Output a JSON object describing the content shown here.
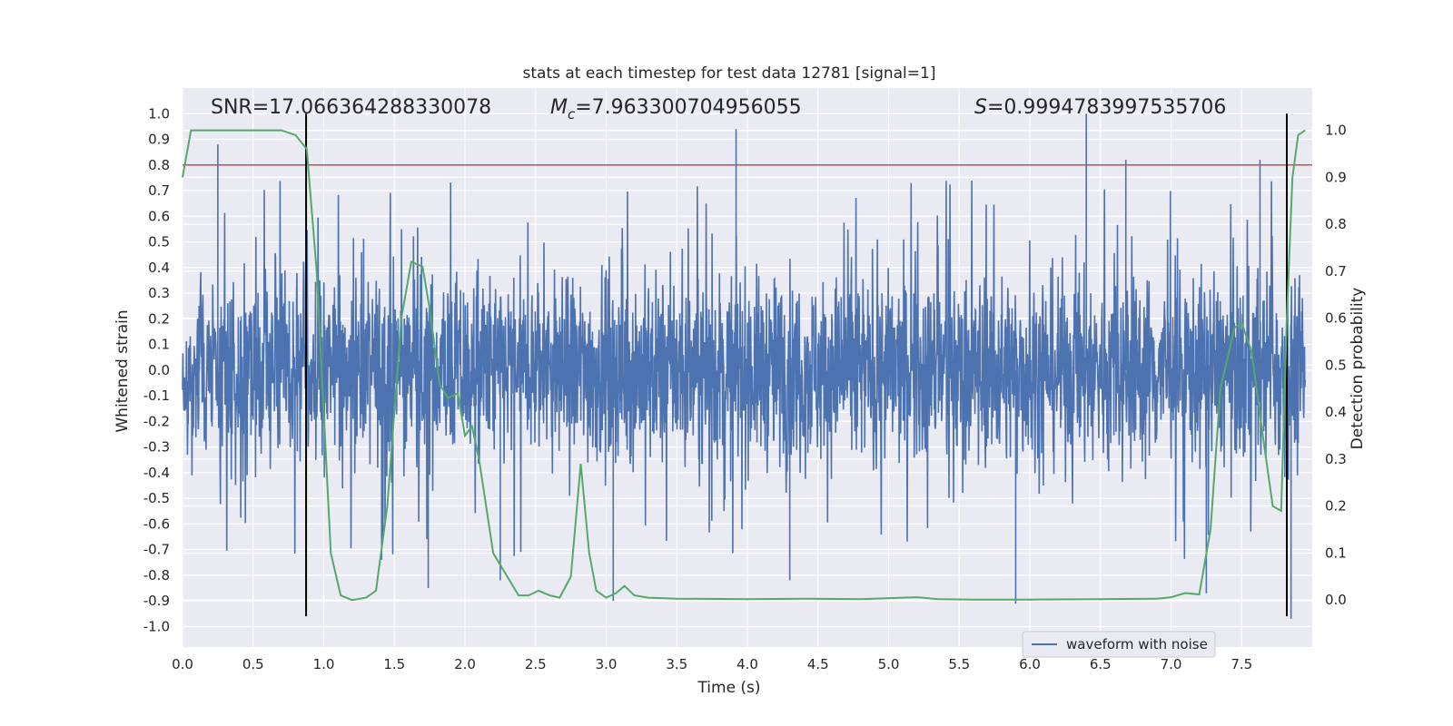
{
  "chart_data": {
    "type": "line",
    "title": "stats at each timestep for test data 12781 [signal=1]",
    "xlabel": "Time (s)",
    "ylabel_left": "Whitened strain",
    "ylabel_right": "Detection probability",
    "xlim": [
      0.0,
      8.0
    ],
    "ylim_left": [
      -1.08,
      1.1
    ],
    "ylim_right": [
      -0.1,
      1.09
    ],
    "x_ticks": [
      0.0,
      0.5,
      1.0,
      1.5,
      2.0,
      2.5,
      3.0,
      3.5,
      4.0,
      4.5,
      5.0,
      5.5,
      6.0,
      6.5,
      7.0,
      7.5
    ],
    "x_tick_labels": [
      "0.0",
      "0.5",
      "1.0",
      "1.5",
      "2.0",
      "2.5",
      "3.0",
      "3.5",
      "4.0",
      "4.5",
      "5.0",
      "5.5",
      "6.0",
      "6.5",
      "7.0",
      "7.5"
    ],
    "y_left_ticks": [
      1.0,
      0.9,
      0.8,
      0.7,
      0.6,
      0.5,
      0.4,
      0.3,
      0.2,
      0.1,
      0.0,
      -0.1,
      -0.2,
      -0.3,
      -0.4,
      -0.5,
      -0.6,
      -0.7,
      -0.8,
      -0.9,
      -1.0
    ],
    "y_left_tick_labels": [
      "1.0",
      "0.9",
      "0.8",
      "0.7",
      "0.6",
      "0.5",
      "0.4",
      "0.3",
      "0.2",
      "0.1",
      "0.0",
      "-0.1",
      "-0.2",
      "-0.3",
      "-0.4",
      "-0.5",
      "-0.6",
      "-0.7",
      "-0.8",
      "-0.9",
      "-1.0"
    ],
    "y_right_ticks": [
      1.0,
      0.9,
      0.8,
      0.7,
      0.6,
      0.5,
      0.4,
      0.3,
      0.2,
      0.1,
      0.0
    ],
    "y_right_tick_labels": [
      "1.0",
      "0.9",
      "0.8",
      "0.7",
      "0.6",
      "0.5",
      "0.4",
      "0.3",
      "0.2",
      "0.1",
      "0.0"
    ],
    "grid": true,
    "annotations": {
      "snr": "SNR=17.066364288330078",
      "mc_symbol": "M",
      "mc_subscript": "c",
      "mc_value": "=7.963300704956055",
      "s_symbol": "S",
      "s_value": "=0.9994783997535706"
    },
    "threshold_left": 0.8,
    "vertical_lines_x": [
      0.875,
      7.82
    ],
    "vertical_lines_ylim": [
      -0.96,
      1.0
    ],
    "waveform": {
      "name": "waveform with noise",
      "color": "#4c72b0",
      "typical_envelope": 0.45,
      "spikes": [
        {
          "x": 0.25,
          "y": 0.88
        },
        {
          "x": 3.92,
          "y": 0.94
        },
        {
          "x": 6.4,
          "y": 1.0
        },
        {
          "x": 6.68,
          "y": 0.82
        },
        {
          "x": 7.63,
          "y": 0.82
        },
        {
          "x": 1.41,
          "y": -0.74
        },
        {
          "x": 1.74,
          "y": -0.85
        },
        {
          "x": 2.25,
          "y": -0.82
        },
        {
          "x": 3.05,
          "y": -0.9
        },
        {
          "x": 4.3,
          "y": -0.82
        },
        {
          "x": 5.9,
          "y": -0.91
        },
        {
          "x": 7.25,
          "y": -0.87
        },
        {
          "x": 7.85,
          "y": -0.97
        }
      ]
    },
    "series": [
      {
        "name": "Detection probability",
        "axis": "right",
        "color": "#55a868",
        "x": [
          0.0,
          0.06,
          0.15,
          0.3,
          0.5,
          0.7,
          0.8,
          0.88,
          0.95,
          1.0,
          1.05,
          1.12,
          1.2,
          1.3,
          1.37,
          1.45,
          1.55,
          1.62,
          1.7,
          1.75,
          1.82,
          1.88,
          1.95,
          2.0,
          2.05,
          2.1,
          2.2,
          2.3,
          2.38,
          2.45,
          2.52,
          2.6,
          2.67,
          2.75,
          2.82,
          2.88,
          2.93,
          3.0,
          3.07,
          3.13,
          3.2,
          3.3,
          3.5,
          4.0,
          4.4,
          4.8,
          5.1,
          5.2,
          5.35,
          5.6,
          6.0,
          6.5,
          6.9,
          7.0,
          7.1,
          7.2,
          7.28,
          7.35,
          7.45,
          7.5,
          7.57,
          7.65,
          7.72,
          7.78,
          7.82,
          7.86,
          7.9,
          7.95
        ],
        "y": [
          0.9,
          1.0,
          1.0,
          1.0,
          1.0,
          1.0,
          0.99,
          0.96,
          0.7,
          0.4,
          0.1,
          0.01,
          0.0,
          0.005,
          0.02,
          0.2,
          0.6,
          0.72,
          0.71,
          0.62,
          0.46,
          0.43,
          0.44,
          0.35,
          0.37,
          0.3,
          0.1,
          0.05,
          0.01,
          0.01,
          0.02,
          0.01,
          0.005,
          0.05,
          0.29,
          0.1,
          0.02,
          0.005,
          0.015,
          0.03,
          0.01,
          0.005,
          0.003,
          0.002,
          0.003,
          0.002,
          0.005,
          0.006,
          0.002,
          0.001,
          0.001,
          0.002,
          0.003,
          0.006,
          0.015,
          0.012,
          0.15,
          0.45,
          0.58,
          0.59,
          0.53,
          0.35,
          0.2,
          0.19,
          0.6,
          0.9,
          0.99,
          1.0
        ]
      }
    ],
    "threshold_color": "#c44e52",
    "background_color": "#eaeaf2",
    "legend": {
      "placement": "lower-right",
      "entries": [
        "waveform with noise"
      ]
    }
  }
}
